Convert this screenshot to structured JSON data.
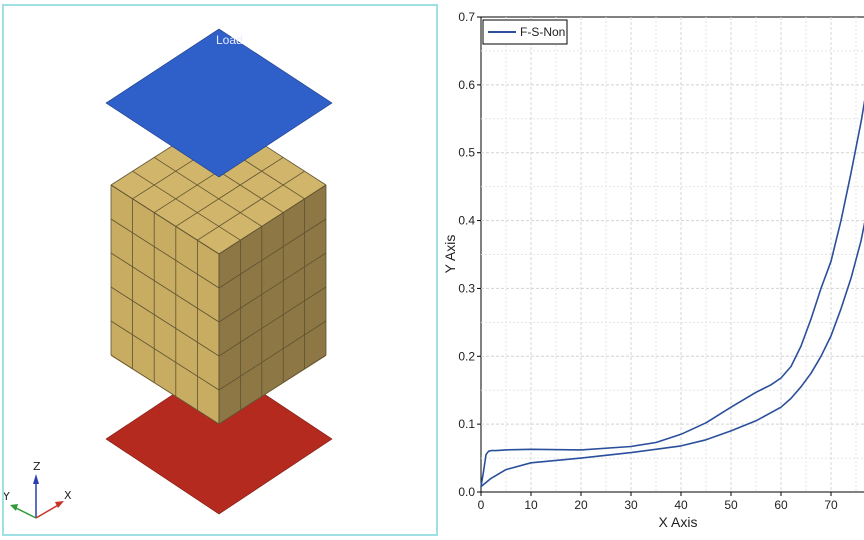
{
  "model_view": {
    "load_label": "Load",
    "triad": {
      "z": "Z",
      "y": "Y",
      "x": "X"
    },
    "colors": {
      "top_plate": "#2f5fc8",
      "bottom_plate": "#b52a1f",
      "cube_top": "#d1b56b",
      "cube_left": "#c7ac62",
      "cube_right": "#8d7745",
      "mesh_line": "#5e5230"
    }
  },
  "chart_data": {
    "type": "line",
    "xlabel": "X Axis",
    "ylabel": "Y Axis",
    "xlim": [
      0,
      78
    ],
    "ylim": [
      0,
      0.7
    ],
    "x_ticks": [
      "0",
      "10",
      "20",
      "30",
      "40",
      "50",
      "60",
      "70"
    ],
    "y_ticks": [
      "0.0",
      "0.1",
      "0.2",
      "0.3",
      "0.4",
      "0.5",
      "0.6",
      "0.7"
    ],
    "grid": true,
    "legend_position": "top-left",
    "series": [
      {
        "name": "F-S-Non",
        "color": "#2b4f9c",
        "x": [
          0,
          0.5,
          1,
          1.5,
          2,
          3,
          5,
          10,
          20,
          30,
          35,
          40,
          45,
          50,
          55,
          58,
          60,
          62,
          64,
          66,
          68,
          70,
          72,
          74,
          76,
          77.5
        ],
        "y": [
          0.008,
          0.03,
          0.055,
          0.06,
          0.061,
          0.061,
          0.062,
          0.063,
          0.062,
          0.067,
          0.073,
          0.085,
          0.102,
          0.125,
          0.147,
          0.158,
          0.168,
          0.185,
          0.215,
          0.255,
          0.3,
          0.34,
          0.4,
          0.47,
          0.545,
          0.61
        ]
      },
      {
        "name": "",
        "color": "#2b4f9c",
        "x": [
          0,
          2,
          5,
          10,
          20,
          30,
          40,
          45,
          50,
          55,
          60,
          62,
          64,
          66,
          68,
          70,
          72,
          74,
          76,
          77.5
        ],
        "y": [
          0.008,
          0.02,
          0.033,
          0.043,
          0.05,
          0.058,
          0.068,
          0.077,
          0.09,
          0.105,
          0.125,
          0.138,
          0.155,
          0.175,
          0.2,
          0.23,
          0.27,
          0.315,
          0.37,
          0.425
        ]
      }
    ]
  }
}
